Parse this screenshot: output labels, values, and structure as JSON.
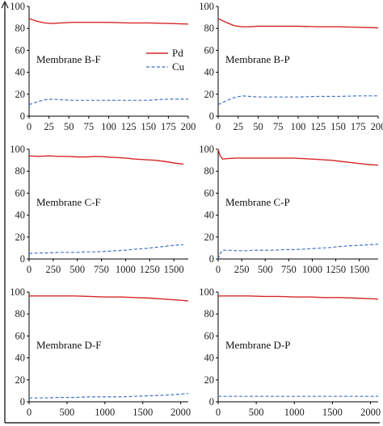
{
  "colors": {
    "pd": "#d62728",
    "cu": "#4472c4",
    "axis": "#000000"
  },
  "legend": {
    "pd": "Pd",
    "cu": "Cu"
  },
  "chart_data": [
    {
      "type": "line",
      "label": "Membrane B-F",
      "xlim": [
        0,
        200
      ],
      "ylim": [
        0,
        100
      ],
      "xticks": [
        0,
        25,
        50,
        75,
        100,
        125,
        150,
        175,
        200
      ],
      "yticks": [
        0,
        20,
        40,
        60,
        80,
        100
      ],
      "show_legend": true,
      "series": [
        {
          "name": "Pd",
          "style": "solid",
          "x": [
            0,
            10,
            20,
            30,
            40,
            55,
            75,
            100,
            125,
            150,
            175,
            200
          ],
          "y": [
            89,
            86.5,
            85,
            84.5,
            85,
            85.5,
            85.5,
            85.5,
            85,
            85,
            84.5,
            84
          ]
        },
        {
          "name": "Cu",
          "style": "dashed",
          "x": [
            0,
            10,
            20,
            30,
            40,
            55,
            75,
            100,
            125,
            150,
            160,
            175,
            200
          ],
          "y": [
            10.5,
            13,
            15,
            15.5,
            15,
            14.5,
            14.5,
            14.5,
            14.5,
            14.5,
            15,
            15.5,
            15.5
          ]
        }
      ]
    },
    {
      "type": "line",
      "label": "Membrane B-P",
      "xlim": [
        0,
        200
      ],
      "ylim": [
        0,
        100
      ],
      "xticks": [
        0,
        25,
        50,
        75,
        100,
        125,
        150,
        175,
        200
      ],
      "yticks": [
        0,
        20,
        40,
        60,
        80,
        100
      ],
      "show_legend": false,
      "series": [
        {
          "name": "Pd",
          "style": "solid",
          "x": [
            0,
            10,
            20,
            30,
            40,
            50,
            75,
            100,
            125,
            150,
            175,
            200
          ],
          "y": [
            89,
            85.5,
            82.5,
            81.5,
            81.5,
            82,
            82,
            82,
            81.5,
            81.5,
            81,
            80.5
          ]
        },
        {
          "name": "Cu",
          "style": "dashed",
          "x": [
            0,
            10,
            20,
            30,
            40,
            50,
            75,
            100,
            125,
            150,
            175,
            200
          ],
          "y": [
            10.5,
            14,
            17,
            18.5,
            18,
            17.5,
            17.5,
            17.5,
            18,
            18,
            18.5,
            18.5
          ]
        }
      ]
    },
    {
      "type": "line",
      "label": "Membrane C-F",
      "xlim": [
        0,
        1650
      ],
      "ylim": [
        0,
        100
      ],
      "xticks": [
        0,
        250,
        500,
        750,
        1000,
        1250,
        1500
      ],
      "yticks": [
        0,
        20,
        40,
        60,
        80,
        100
      ],
      "show_legend": false,
      "series": [
        {
          "name": "Pd",
          "style": "solid",
          "x": [
            0,
            100,
            200,
            300,
            400,
            500,
            600,
            700,
            800,
            900,
            1000,
            1100,
            1200,
            1300,
            1400,
            1500,
            1600
          ],
          "y": [
            94,
            93.5,
            94,
            93.5,
            93.5,
            93,
            93,
            93.5,
            93,
            92.5,
            92,
            91,
            90.5,
            90,
            89,
            87.5,
            86.5
          ]
        },
        {
          "name": "Cu",
          "style": "dashed",
          "x": [
            0,
            100,
            200,
            300,
            400,
            500,
            600,
            700,
            800,
            900,
            1000,
            1100,
            1200,
            1300,
            1400,
            1500,
            1600
          ],
          "y": [
            5,
            5.5,
            5.5,
            6,
            6,
            6,
            6.5,
            6.5,
            7,
            7.5,
            8,
            9,
            9.5,
            10.5,
            11.5,
            12.5,
            13
          ]
        }
      ]
    },
    {
      "type": "line",
      "label": "Membrane C-P",
      "xlim": [
        0,
        1700
      ],
      "ylim": [
        0,
        100
      ],
      "xticks": [
        0,
        250,
        500,
        750,
        1000,
        1250,
        1500
      ],
      "yticks": [
        0,
        20,
        40,
        60,
        80,
        100
      ],
      "show_legend": false,
      "series": [
        {
          "name": "Pd",
          "style": "solid",
          "x": [
            0,
            20,
            50,
            100,
            200,
            300,
            400,
            500,
            600,
            700,
            800,
            900,
            1000,
            1100,
            1200,
            1300,
            1400,
            1500,
            1600,
            1700
          ],
          "y": [
            100,
            94,
            91,
            91.5,
            92,
            92,
            92,
            92,
            92,
            92,
            92,
            91.5,
            91,
            90.5,
            90,
            89,
            88,
            87,
            86,
            85.5
          ]
        },
        {
          "name": "Cu",
          "style": "dashed",
          "x": [
            0,
            20,
            50,
            100,
            200,
            300,
            400,
            500,
            600,
            700,
            800,
            900,
            1000,
            1100,
            1200,
            1300,
            1400,
            1500,
            1600,
            1700
          ],
          "y": [
            0,
            5,
            8,
            8,
            7.5,
            7.5,
            8,
            8,
            8,
            8.5,
            8.5,
            9,
            9.5,
            10,
            10.5,
            11.5,
            12,
            12.5,
            13,
            13.5
          ]
        }
      ]
    },
    {
      "type": "line",
      "label": "Membrane D-F",
      "xlim": [
        0,
        2100
      ],
      "ylim": [
        0,
        100
      ],
      "xticks": [
        0,
        500,
        1000,
        1500,
        2000
      ],
      "yticks": [
        0,
        20,
        40,
        60,
        80,
        100
      ],
      "show_legend": false,
      "series": [
        {
          "name": "Pd",
          "style": "solid",
          "x": [
            0,
            200,
            400,
            600,
            800,
            1000,
            1200,
            1400,
            1600,
            1800,
            2000,
            2100
          ],
          "y": [
            96.5,
            96.5,
            96.5,
            96.5,
            96,
            95.5,
            95.5,
            95,
            94.5,
            93.5,
            92.5,
            92
          ]
        },
        {
          "name": "Cu",
          "style": "dashed",
          "x": [
            0,
            200,
            400,
            600,
            800,
            1000,
            1200,
            1400,
            1600,
            1800,
            2000,
            2100
          ],
          "y": [
            3.5,
            3.5,
            4,
            4,
            4.5,
            4.5,
            4.5,
            5,
            5.5,
            6,
            7,
            7.5
          ]
        }
      ]
    },
    {
      "type": "line",
      "label": "Membrane D-P",
      "xlim": [
        0,
        2100
      ],
      "ylim": [
        0,
        100
      ],
      "xticks": [
        0,
        500,
        1000,
        1500,
        2000
      ],
      "yticks": [
        0,
        20,
        40,
        60,
        80,
        100
      ],
      "show_legend": false,
      "series": [
        {
          "name": "Pd",
          "style": "solid",
          "x": [
            0,
            200,
            400,
            600,
            800,
            1000,
            1200,
            1400,
            1600,
            1800,
            2000,
            2100
          ],
          "y": [
            96.5,
            96.5,
            96.5,
            96,
            96,
            95.5,
            95.5,
            95,
            95,
            94.5,
            94,
            93.5
          ]
        },
        {
          "name": "Cu",
          "style": "dashed",
          "x": [
            0,
            200,
            400,
            600,
            800,
            1000,
            1200,
            1400,
            1600,
            1800,
            2000,
            2100
          ],
          "y": [
            5,
            5,
            5,
            5,
            5,
            5,
            5,
            5,
            5,
            5,
            5,
            5
          ]
        }
      ]
    }
  ]
}
